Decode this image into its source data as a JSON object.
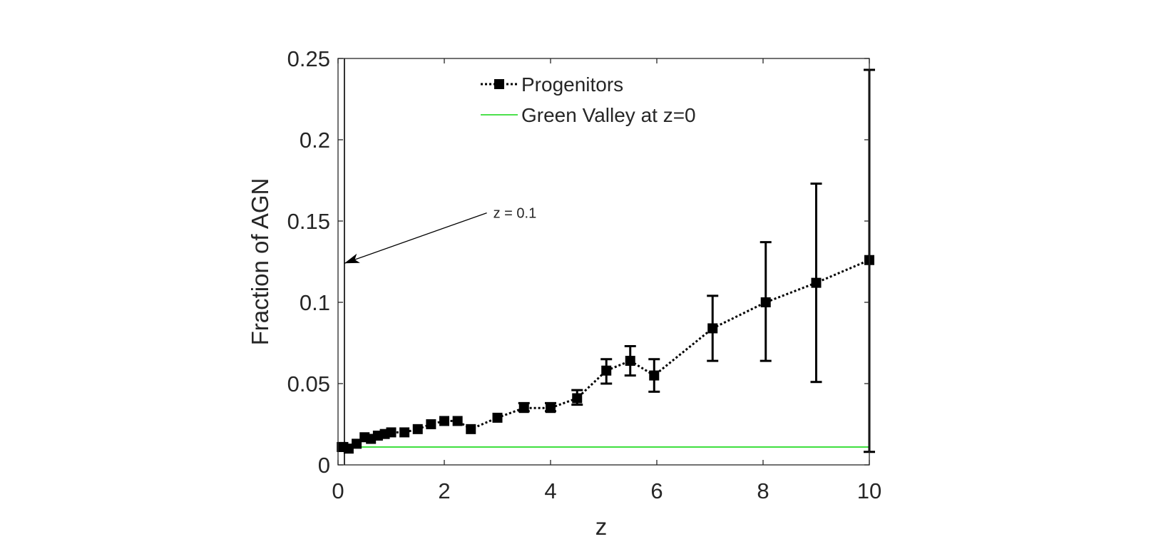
{
  "chart_data": {
    "type": "line",
    "xlabel": "z",
    "ylabel": "Fraction of AGN",
    "xlim": [
      0,
      10
    ],
    "ylim": [
      0,
      0.25
    ],
    "xticks": [
      0,
      2,
      4,
      6,
      8,
      10
    ],
    "xtick_labels": [
      "0",
      "2",
      "4",
      "6",
      "8",
      "10"
    ],
    "yticks": [
      0,
      0.05,
      0.1,
      0.15,
      0.2,
      0.25
    ],
    "ytick_labels": [
      "0",
      "0.05",
      "0.1",
      "0.15",
      "0.2",
      "0.25"
    ],
    "grid": false,
    "legend_position": "top",
    "series": [
      {
        "name": "Progenitors",
        "style": "dotted-with-square-markers",
        "color": "#000000",
        "x": [
          0.07,
          0.1,
          0.2,
          0.35,
          0.5,
          0.62,
          0.75,
          0.88,
          1.0,
          1.25,
          1.5,
          1.75,
          2.0,
          2.25,
          2.5,
          3.0,
          3.5,
          4.0,
          4.5,
          5.05,
          5.5,
          5.95,
          7.05,
          8.05,
          9.0,
          10.0
        ],
        "y": [
          0.011,
          0.011,
          0.01,
          0.013,
          0.017,
          0.016,
          0.018,
          0.019,
          0.02,
          0.02,
          0.022,
          0.025,
          0.027,
          0.027,
          0.022,
          0.029,
          0.035,
          0.035,
          0.041,
          0.058,
          0.064,
          0.055,
          0.084,
          0.1,
          0.112,
          0.126
        ],
        "err_low": [
          null,
          null,
          null,
          null,
          null,
          null,
          null,
          null,
          null,
          null,
          null,
          null,
          null,
          null,
          null,
          null,
          0.033,
          0.033,
          0.037,
          0.05,
          0.055,
          0.045,
          0.064,
          0.064,
          0.051,
          0.008
        ],
        "err_high": [
          null,
          null,
          null,
          null,
          null,
          null,
          null,
          null,
          null,
          null,
          null,
          null,
          null,
          null,
          null,
          null,
          0.038,
          0.038,
          0.046,
          0.065,
          0.073,
          0.065,
          0.104,
          0.137,
          0.173,
          0.243
        ]
      },
      {
        "name": "Green Valley at z=0",
        "style": "solid",
        "color": "#33dd33",
        "y_constant": 0.011
      }
    ],
    "annotations": [
      {
        "text": "z = 0.1",
        "arrow_from": [
          2.8,
          0.155
        ],
        "arrow_to": [
          0.12,
          0.124
        ]
      }
    ]
  }
}
